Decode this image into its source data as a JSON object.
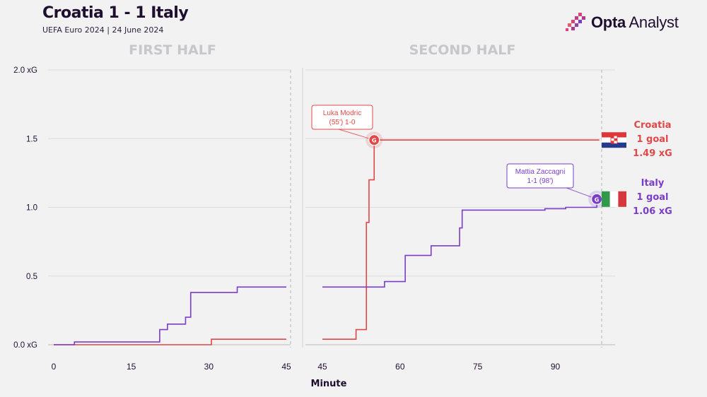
{
  "header": {
    "title": "Croatia 1 - 1 Italy",
    "subtitle": "UEFA Euro 2024 | 24 June 2024",
    "brand_bold": "Opta",
    "brand_light": " Analyst"
  },
  "colors": {
    "croatia": "#e04848",
    "italy": "#7a3dc7",
    "grid": "#dcdcde",
    "halftitle": "#c6c6cb",
    "text": "#1e0f2e"
  },
  "chart_data": {
    "type": "line",
    "panels": [
      {
        "title": "FIRST HALF",
        "xlim": [
          0,
          45
        ],
        "xticks": [
          0,
          15,
          30,
          45
        ]
      },
      {
        "title": "SECOND HALF",
        "xlim": [
          45,
          99
        ],
        "xticks": [
          45,
          60,
          75,
          90
        ]
      }
    ],
    "xlabel": "Minute",
    "ylim": [
      0,
      2.0
    ],
    "yticks": [
      0.0,
      0.5,
      1.0,
      1.5,
      2.0
    ],
    "ytick_labels": [
      "0.0 xG",
      "0.5",
      "1.0",
      "1.5",
      "2.0 xG"
    ],
    "grid": true,
    "series": [
      {
        "name": "Croatia",
        "color_key": "croatia",
        "first_half": [
          [
            0,
            0.0
          ],
          [
            30.5,
            0.04
          ],
          [
            45,
            0.04
          ]
        ],
        "second_half": [
          [
            45,
            0.04
          ],
          [
            51.5,
            0.11
          ],
          [
            53.5,
            0.89
          ],
          [
            54,
            1.2
          ],
          [
            55,
            1.49
          ],
          [
            98.5,
            1.49
          ]
        ]
      },
      {
        "name": "Italy",
        "color_key": "italy",
        "first_half": [
          [
            0,
            0.0
          ],
          [
            4,
            0.02
          ],
          [
            20.5,
            0.11
          ],
          [
            22,
            0.15
          ],
          [
            25.5,
            0.2
          ],
          [
            26.5,
            0.38
          ],
          [
            35.5,
            0.42
          ],
          [
            45,
            0.42
          ]
        ],
        "second_half": [
          [
            45,
            0.42
          ],
          [
            57,
            0.46
          ],
          [
            61,
            0.65
          ],
          [
            66,
            0.72
          ],
          [
            71.5,
            0.85
          ],
          [
            72,
            0.98
          ],
          [
            88,
            0.99
          ],
          [
            92,
            1.0
          ],
          [
            98,
            1.06
          ]
        ]
      }
    ],
    "annotations": [
      {
        "label_line1": "Luka Modric",
        "label_line2": "(55') 1-0",
        "minute": 55,
        "xg": 1.49,
        "panel": 1,
        "marker": "G",
        "color_key": "croatia"
      },
      {
        "label_line1": "Mattia Zaccagni",
        "label_line2": "1-1 (98')",
        "minute": 98,
        "xg": 1.06,
        "panel": 1,
        "marker": "G",
        "color_key": "italy"
      }
    ],
    "end_labels": [
      {
        "team": "Croatia",
        "goals": "1 goal",
        "xg": "1.49 xG",
        "color_key": "croatia",
        "y_value": 1.49
      },
      {
        "team": "Italy",
        "goals": "1 goal",
        "xg": "1.06 xG",
        "color_key": "italy",
        "y_value": 1.06
      }
    ]
  }
}
